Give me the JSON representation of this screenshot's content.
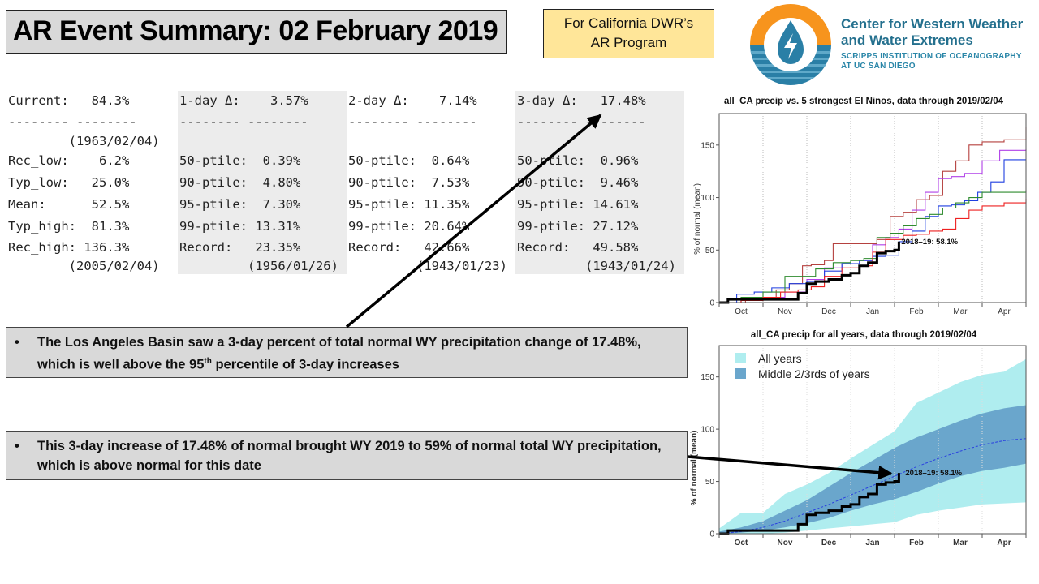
{
  "header": {
    "title": "AR Event Summary: 02 February 2019",
    "program_line1": "For California DWR’s",
    "program_line2": "AR Program"
  },
  "logo": {
    "icon": "water-drop-lightning-logo-icon",
    "line1": "Center for Western Weather",
    "line2": "and Water Extremes",
    "line3": "SCRIPPS INSTITUTION OF OCEANOGRAPHY",
    "line4": "AT UC SAN DIEGO",
    "colors": {
      "orange": "#f7941d",
      "blue": "#2a7fa6",
      "dark_blue": "#1f6f8b"
    }
  },
  "stats": {
    "current": {
      "header": "Current:   84.3%",
      "rule": "-------- --------",
      "date": "        (1963/02/04)",
      "rows": [
        "Rec_low:    6.2%",
        "Typ_low:   25.0%",
        "Mean:      52.5%",
        "Typ_high:  81.3%",
        "Rec_high: 136.3%"
      ],
      "footer": "        (2005/02/04)"
    },
    "day1": {
      "header": "1-day Δ:    3.57%",
      "rule": "-------- --------",
      "rows": [
        "50-ptile:  0.39%",
        "90-ptile:  4.80%",
        "95-ptile:  7.30%",
        "99-ptile: 13.31%",
        "Record:   23.35%"
      ],
      "footer": "         (1956/01/26)"
    },
    "day2": {
      "header": "2-day Δ:    7.14%",
      "rule": "-------- --------",
      "rows": [
        "50-ptile:  0.64%",
        "90-ptile:  7.53%",
        "95-ptile: 11.35%",
        "99-ptile: 20.64%",
        "Record:   42.66%"
      ],
      "footer": "         (1943/01/23)"
    },
    "day3": {
      "header": "3-day Δ:   17.48%",
      "rule": "-------- --------",
      "rows": [
        "50-ptile:  0.96%",
        "90-ptile:  9.46%",
        "95-ptile: 14.61%",
        "99-ptile: 27.12%",
        "Record:   49.58%"
      ],
      "footer": "         (1943/01/24)"
    }
  },
  "callouts": [
    {
      "bullet": "•",
      "text_before": "The Los Angeles Basin saw a 3-day percent of total normal WY precipitation change of 17.48%, which is well above the 95",
      "superscript": "th",
      "text_after": " percentile of 3-day increases"
    },
    {
      "bullet": "•",
      "text": "This 3-day increase of 17.48% of normal brought WY 2019 to 59% of normal total WY precipitation, which is above normal for this date"
    }
  ],
  "chart_data": [
    {
      "type": "line",
      "title": "all_CA precip vs. 5 strongest El Ninos, data through 2019/02/04",
      "ylabel": "% of normal (mean)",
      "xlabel": "",
      "x_ticks": [
        "Oct",
        "Nov",
        "Dec",
        "Jan",
        "Feb",
        "Mar",
        "Apr"
      ],
      "y_ticks": [
        0,
        50,
        100,
        150
      ],
      "ylim": [
        0,
        180
      ],
      "xlim_months": [
        0,
        7
      ],
      "grid": "vertical dotted at month boundaries",
      "annotation": "2018–19: 58.1%",
      "series": [
        {
          "name": "brown",
          "color": "#b5413f",
          "x": [
            0,
            0.6,
            0.9,
            1.3,
            1.6,
            1.9,
            2.1,
            2.4,
            2.6,
            3.0,
            3.3,
            3.6,
            3.9,
            4.2,
            4.5,
            4.8,
            5.1,
            5.4,
            5.7,
            6.0,
            6.5,
            7.0
          ],
          "y": [
            0,
            2,
            5,
            12,
            18,
            35,
            36,
            40,
            56,
            56,
            56,
            60,
            82,
            86,
            98,
            102,
            125,
            135,
            150,
            153,
            155,
            167
          ]
        },
        {
          "name": "purple",
          "color": "#b040e8",
          "x": [
            0,
            0.5,
            1.0,
            1.5,
            2.0,
            2.4,
            2.8,
            3.2,
            3.5,
            3.8,
            4.1,
            4.4,
            4.7,
            5.0,
            5.3,
            5.6,
            6.0,
            6.4,
            7.0
          ],
          "y": [
            0,
            3,
            5,
            10,
            22,
            33,
            37,
            40,
            55,
            62,
            70,
            88,
            105,
            118,
            120,
            123,
            135,
            145,
            146
          ]
        },
        {
          "name": "blue",
          "color": "#1f3fe0",
          "x": [
            0,
            0.4,
            0.8,
            1.2,
            1.6,
            2.0,
            2.4,
            2.8,
            3.2,
            3.5,
            3.8,
            4.1,
            4.4,
            4.7,
            5.0,
            5.3,
            5.6,
            5.9,
            6.2,
            6.5,
            7.0
          ],
          "y": [
            0,
            8,
            10,
            14,
            18,
            20,
            30,
            37,
            40,
            44,
            45,
            58,
            68,
            82,
            92,
            93,
            97,
            105,
            115,
            136,
            136
          ]
        },
        {
          "name": "green",
          "color": "#2e8b2e",
          "x": [
            0,
            0.5,
            1.0,
            1.5,
            1.9,
            2.2,
            2.6,
            3.0,
            3.3,
            3.6,
            3.9,
            4.2,
            4.5,
            4.8,
            5.1,
            5.4,
            5.7,
            6.0,
            7.0
          ],
          "y": [
            0,
            5,
            10,
            25,
            25,
            32,
            38,
            40,
            42,
            62,
            66,
            73,
            80,
            84,
            90,
            95,
            100,
            105,
            107
          ]
        },
        {
          "name": "red",
          "color": "#ee2020",
          "x": [
            0,
            0.5,
            1.0,
            1.4,
            1.8,
            2.1,
            2.4,
            2.8,
            3.2,
            3.5,
            3.8,
            4.2,
            4.5,
            4.8,
            5.1,
            5.4,
            5.7,
            6.0,
            6.5,
            7.0
          ],
          "y": [
            0,
            2,
            5,
            10,
            12,
            15,
            25,
            33,
            35,
            48,
            60,
            64,
            65,
            68,
            70,
            80,
            88,
            92,
            95,
            99
          ]
        },
        {
          "name": "2018–19",
          "color": "#000000",
          "x": [
            0,
            0.2,
            1.6,
            1.8,
            2.0,
            2.2,
            2.5,
            2.8,
            3.0,
            3.2,
            3.4,
            3.6,
            3.8,
            4.0,
            4.1
          ],
          "y": [
            0,
            3,
            3,
            9,
            18,
            20,
            22,
            26,
            28,
            35,
            38,
            47,
            49,
            50,
            58.1
          ]
        }
      ]
    },
    {
      "type": "area",
      "title": "all_CA precip for all years, data through 2019/02/04",
      "ylabel": "% of normal (mean)",
      "xlabel": "",
      "x_ticks": [
        "Oct",
        "Nov",
        "Dec",
        "Jan",
        "Feb",
        "Mar",
        "Apr"
      ],
      "y_ticks": [
        0,
        50,
        100,
        150
      ],
      "ylim": [
        0,
        180
      ],
      "xlim_months": [
        0,
        7
      ],
      "legend": [
        "All years",
        "Middle 2/3rds of years"
      ],
      "legend_position": "top-left",
      "annotation": "2018–19: 58.1%",
      "x": [
        0,
        0.5,
        1.0,
        1.5,
        2.0,
        2.5,
        3.0,
        3.5,
        4.0,
        4.5,
        5.0,
        5.5,
        6.0,
        6.5,
        7.0
      ],
      "all_years_low": [
        0,
        0,
        0,
        1,
        3,
        5,
        7,
        9,
        11,
        18,
        22,
        25,
        28,
        29,
        30
      ],
      "all_years_high": [
        5,
        20,
        20,
        38,
        47,
        58,
        72,
        85,
        98,
        125,
        135,
        145,
        152,
        155,
        167
      ],
      "middle_low": [
        0,
        1,
        3,
        6,
        10,
        15,
        22,
        28,
        33,
        40,
        48,
        55,
        60,
        63,
        67
      ],
      "middle_high": [
        2,
        6,
        12,
        22,
        32,
        45,
        58,
        70,
        82,
        92,
        100,
        108,
        115,
        120,
        123
      ],
      "mean": [
        0,
        2,
        6,
        12,
        20,
        28,
        37,
        46,
        55,
        64,
        72,
        79,
        85,
        89,
        91
      ],
      "current_x": [
        0,
        0.2,
        1.6,
        1.8,
        2.0,
        2.2,
        2.5,
        2.8,
        3.0,
        3.2,
        3.4,
        3.6,
        3.8,
        4.0,
        4.1
      ],
      "current_y": [
        0,
        3,
        3,
        9,
        18,
        20,
        22,
        26,
        28,
        35,
        38,
        47,
        49,
        50,
        58.1
      ],
      "colors": {
        "all_years": "#afedef",
        "middle": "#6aa6cc",
        "mean": "#2a3fe0",
        "current": "#000000"
      }
    }
  ]
}
